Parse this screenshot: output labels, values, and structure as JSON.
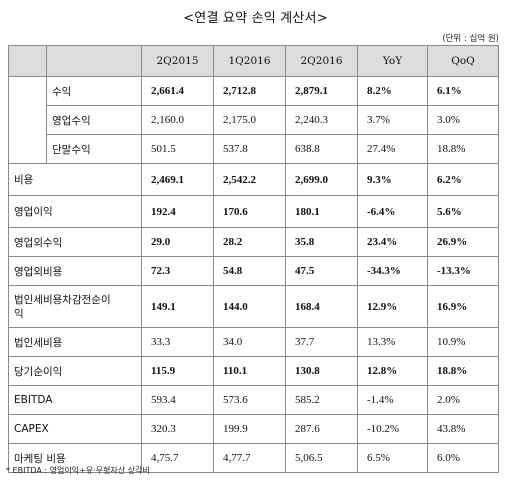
{
  "title": "<연결 요약 손익 계산서>",
  "unit": "(단위 : 십억 원)",
  "columns": [
    "2Q2015",
    "1Q2016",
    "2Q2016",
    "YoY",
    "QoQ"
  ],
  "rows": [
    {
      "label": "수익",
      "sub": true,
      "bold": true,
      "values": [
        "2,661.4",
        "2,712.8",
        "2,879.1",
        "8.2%",
        "6.1%"
      ]
    },
    {
      "label": "영업수익",
      "sub": true,
      "bold": false,
      "values": [
        "2,160.0",
        "2,175.0",
        "2,240.3",
        "3.7%",
        "3.0%"
      ]
    },
    {
      "label": "단말수익",
      "sub": true,
      "bold": false,
      "values": [
        "501.5",
        "537.8",
        "638.8",
        "27.4%",
        "18.8%"
      ]
    },
    {
      "label": "비용",
      "sub": false,
      "bold": true,
      "values": [
        "2,469.1",
        "2,542.2",
        "2,699.0",
        "9.3%",
        "6.2%"
      ]
    },
    {
      "label": "영업이익",
      "sub": false,
      "bold": true,
      "values": [
        "192.4",
        "170.6",
        "180.1",
        "-6.4%",
        "5.6%"
      ]
    },
    {
      "label": "영업외수익",
      "sub": false,
      "bold": true,
      "values": [
        "29.0",
        "28.2",
        "35.8",
        "23.4%",
        "26.9%"
      ]
    },
    {
      "label": "영업외비용",
      "sub": false,
      "bold": true,
      "values": [
        "72.3",
        "54.8",
        "47.5",
        "-34.3%",
        "-13.3%"
      ]
    },
    {
      "label": "법인세비용차감전순이익",
      "sub": false,
      "bold": true,
      "tall": true,
      "values": [
        "149.1",
        "144.0",
        "168.4",
        "12.9%",
        "16.9%"
      ]
    },
    {
      "label": "법인세비용",
      "sub": false,
      "bold": false,
      "values": [
        "33.3",
        "34.0",
        "37.7",
        "13.3%",
        "10.9%"
      ]
    },
    {
      "label": "당기순이익",
      "sub": false,
      "bold": true,
      "values": [
        "115.9",
        "110.1",
        "130.8",
        "12.8%",
        "18.8%"
      ]
    },
    {
      "label": "EBITDA",
      "sub": false,
      "bold": false,
      "values": [
        "593.4",
        "573.6",
        "585.2",
        "-1.4%",
        "2.0%"
      ]
    },
    {
      "label": "CAPEX",
      "sub": false,
      "bold": false,
      "values": [
        "320.3",
        "199.9",
        "287.6",
        "-10.2%",
        "43.8%"
      ]
    },
    {
      "label": "마케팅 비용",
      "sub": false,
      "bold": false,
      "values": [
        "4,75.7",
        "4,77.7",
        "5,06.5",
        "6.5%",
        "6.0%"
      ]
    }
  ],
  "footnote": "* EBITDA : 영업이익+유·무형자산 상각비"
}
